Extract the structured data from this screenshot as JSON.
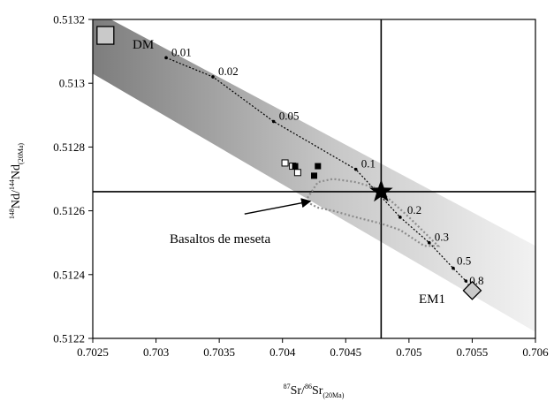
{
  "chart_data": {
    "type": "scatter",
    "title": "",
    "xlabel_parts": {
      "pre1": "87",
      "main1": "Sr/",
      "pre2": "86",
      "main2": "Sr",
      "sub": "(20Ma)"
    },
    "ylabel_parts": {
      "pre1": "148",
      "main1": "Nd/",
      "pre2": "144",
      "main2": "Nd",
      "sub": "(20Ma)"
    },
    "xlim": [
      0.7025,
      0.706
    ],
    "ylim": [
      0.5122,
      0.5132
    ],
    "x_ticks": [
      {
        "v": 0.7025,
        "label": "0.7025"
      },
      {
        "v": 0.703,
        "label": "0.703"
      },
      {
        "v": 0.7035,
        "label": "0.7035"
      },
      {
        "v": 0.704,
        "label": "0.704"
      },
      {
        "v": 0.7045,
        "label": "0.7045"
      },
      {
        "v": 0.705,
        "label": "0.705"
      },
      {
        "v": 0.7055,
        "label": "0.7055"
      },
      {
        "v": 0.706,
        "label": "0.706"
      }
    ],
    "y_ticks": [
      {
        "v": 0.5122,
        "label": "0.5122"
      },
      {
        "v": 0.5124,
        "label": "0.5124"
      },
      {
        "v": 0.5126,
        "label": "0.5126"
      },
      {
        "v": 0.5128,
        "label": "0.5128"
      },
      {
        "v": 0.513,
        "label": "0.513"
      },
      {
        "v": 0.5132,
        "label": "0.5132"
      }
    ],
    "reference_lines": {
      "x": 0.70478,
      "y": 0.51266
    },
    "mixing_band": {
      "upper": [
        [
          0.7025,
          0.51323
        ],
        [
          0.706,
          0.51249
        ]
      ],
      "lower": [
        [
          0.7025,
          0.51303
        ],
        [
          0.706,
          0.51222
        ]
      ]
    },
    "end_members": [
      {
        "name": "DM",
        "x": 0.7026,
        "y": 0.51315,
        "marker": "square"
      },
      {
        "name": "EM1",
        "x": 0.7055,
        "y": 0.51235,
        "marker": "diamond"
      }
    ],
    "mixing_curve": [
      {
        "x": 0.70308,
        "y": 0.51308,
        "label": "0.01"
      },
      {
        "x": 0.70345,
        "y": 0.51302,
        "label": "0.02"
      },
      {
        "x": 0.70393,
        "y": 0.51288,
        "label": "0.05"
      },
      {
        "x": 0.70458,
        "y": 0.51273,
        "label": "0.1"
      },
      {
        "x": 0.70493,
        "y": 0.51258,
        "label": "0.2"
      },
      {
        "x": 0.70516,
        "y": 0.5125,
        "label": "0.3"
      },
      {
        "x": 0.70535,
        "y": 0.51242,
        "label": "0.5"
      },
      {
        "x": 0.70545,
        "y": 0.51238,
        "label": "0.8"
      }
    ],
    "star": {
      "x": 0.70478,
      "y": 0.51266
    },
    "open_squares": [
      {
        "x": 0.70402,
        "y": 0.51275
      },
      {
        "x": 0.70408,
        "y": 0.51274
      },
      {
        "x": 0.70412,
        "y": 0.51272
      }
    ],
    "filled_squares": [
      {
        "x": 0.7041,
        "y": 0.51274
      },
      {
        "x": 0.70428,
        "y": 0.51274
      },
      {
        "x": 0.70425,
        "y": 0.51271
      }
    ],
    "field": {
      "name": "Basaltos de meseta",
      "outline": [
        [
          0.70418,
          0.51263
        ],
        [
          0.70428,
          0.51269
        ],
        [
          0.7044,
          0.5127
        ],
        [
          0.70458,
          0.51269
        ],
        [
          0.70475,
          0.51267
        ],
        [
          0.705,
          0.51258
        ],
        [
          0.70523,
          0.51249
        ],
        [
          0.70512,
          0.51249
        ],
        [
          0.70493,
          0.51254
        ],
        [
          0.70478,
          0.51256
        ],
        [
          0.70458,
          0.51258
        ],
        [
          0.7044,
          0.5126
        ],
        [
          0.70428,
          0.51261
        ]
      ],
      "arrow_tip": [
        0.70422,
        0.51263
      ],
      "arrow_tail": [
        0.7037,
        0.51259
      ]
    }
  }
}
